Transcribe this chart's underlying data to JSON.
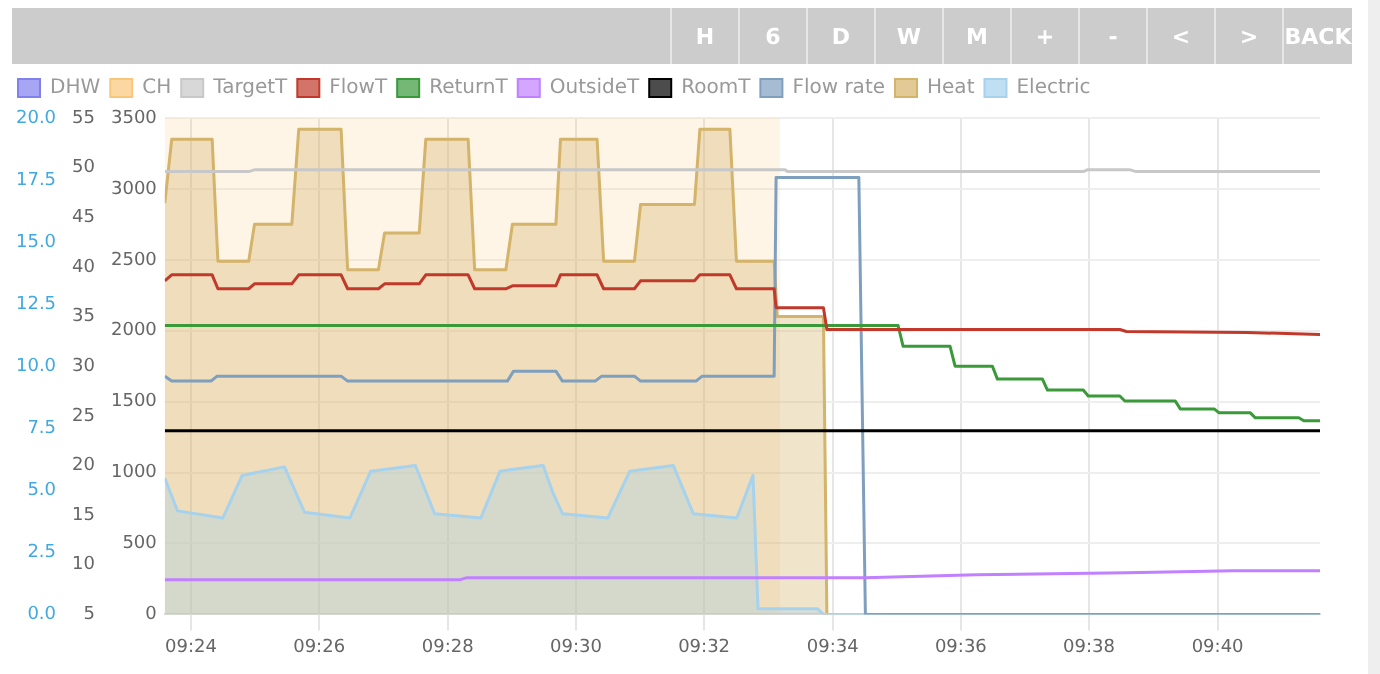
{
  "chart_data": {
    "type": "line",
    "annotations": [
      "H",
      "6",
      "D",
      "W",
      "M",
      "+",
      "-",
      "<",
      ">",
      "BACK"
    ],
    "xlim": [
      9.3932,
      9.6933
    ],
    "xticks": [
      {
        "value": 9.4,
        "label": "09:24"
      },
      {
        "value": 9.4333,
        "label": "09:26"
      },
      {
        "value": 9.4667,
        "label": "09:28"
      },
      {
        "value": 9.5,
        "label": "09:30"
      },
      {
        "value": 9.5333,
        "label": "09:32"
      },
      {
        "value": 9.5667,
        "label": "09:34"
      },
      {
        "value": 9.6,
        "label": "09:36"
      },
      {
        "value": 9.6333,
        "label": "09:38"
      },
      {
        "value": 9.6667,
        "label": "09:40"
      }
    ],
    "ylim": [
      0,
      3500
    ],
    "yticks": [
      0,
      500,
      1000,
      1500,
      2000,
      2500,
      3000,
      3500
    ],
    "y2lim": [
      5,
      55
    ],
    "y2ticks": [
      5,
      10,
      15,
      20,
      25,
      30,
      35,
      40,
      45,
      50,
      55
    ],
    "y3lim": [
      0,
      20
    ],
    "y3ticks": [
      {
        "value": 0,
        "label": "0.0"
      },
      {
        "value": 2.5,
        "label": "2.5"
      },
      {
        "value": 5,
        "label": "5.0"
      },
      {
        "value": 7.5,
        "label": "7.5"
      },
      {
        "value": 10,
        "label": "10.0"
      },
      {
        "value": 12.5,
        "label": "12.5"
      },
      {
        "value": 15,
        "label": "15.0"
      },
      {
        "value": 17.5,
        "label": "17.5"
      },
      {
        "value": 20,
        "label": "20.0"
      }
    ],
    "grid": true,
    "legend": "top left",
    "marker": "none",
    "line_style": "solid",
    "series": [
      {
        "name": "DHW",
        "color": "#8080f0",
        "type": "line"
      },
      {
        "name": "CH",
        "color": "#f9c77a",
        "type": "area",
        "x": [
          9.3932,
          9.553
        ],
        "values": [
          3500,
          3500
        ]
      },
      {
        "name": "TargetT",
        "color": "#c8c8c8",
        "type": "line",
        "axis": "y2",
        "x": [
          9.3932,
          9.415,
          9.4167,
          9.5542,
          9.555,
          9.6318,
          9.633,
          9.6438,
          9.6455,
          9.6933
        ],
        "values": [
          49.6,
          49.6,
          49.8,
          49.8,
          49.6,
          49.6,
          49.8,
          49.8,
          49.6,
          49.6
        ]
      },
      {
        "name": "FlowT",
        "color": "#c0392b",
        "type": "line",
        "axis": "y2",
        "x": [
          9.3932,
          9.395,
          9.4055,
          9.407,
          9.415,
          9.4165,
          9.4262,
          9.428,
          9.439,
          9.4407,
          9.4487,
          9.4503,
          9.4593,
          9.461,
          9.472,
          9.4737,
          9.4818,
          9.4835,
          9.4948,
          9.496,
          9.5055,
          9.5072,
          9.5152,
          9.5168,
          9.5308,
          9.5322,
          9.54,
          9.5417,
          9.5515,
          9.552,
          9.5643,
          9.5652,
          9.6413,
          9.643,
          9.6743,
          9.6933
        ],
        "values": [
          38.6,
          39.2,
          39.2,
          37.8,
          37.8,
          38.3,
          38.3,
          39.2,
          39.2,
          37.8,
          37.8,
          38.3,
          38.3,
          39.2,
          39.2,
          37.8,
          37.8,
          38.1,
          38.1,
          39.2,
          39.2,
          37.8,
          37.8,
          38.6,
          38.6,
          39.2,
          39.2,
          37.8,
          37.8,
          35.9,
          35.9,
          33.7,
          33.7,
          33.5,
          33.4,
          33.2
        ]
      },
      {
        "name": "ReturnT",
        "color": "#3a9a3a",
        "type": "line",
        "axis": "y2",
        "x": [
          9.3932,
          9.5837,
          9.585,
          9.5972,
          9.5985,
          9.6082,
          9.6095,
          9.6212,
          9.6225,
          9.6318,
          9.6331,
          9.6413,
          9.6426,
          9.6557,
          9.657,
          9.6658,
          9.6671,
          9.6752,
          9.6765,
          9.6878,
          9.6891,
          9.6933
        ],
        "values": [
          34.1,
          34.1,
          32,
          32,
          30,
          30,
          28.7,
          28.7,
          27.6,
          27.6,
          27,
          27,
          26.5,
          26.5,
          25.7,
          25.7,
          25.3,
          25.3,
          24.8,
          24.8,
          24.5,
          24.5
        ]
      },
      {
        "name": "OutsideT",
        "color": "#c080ff",
        "type": "line",
        "axis": "y2",
        "x": [
          9.3932,
          9.47,
          9.4717,
          9.5752,
          9.604,
          9.643,
          9.6708,
          9.6933
        ],
        "values": [
          8.5,
          8.5,
          8.7,
          8.7,
          9,
          9.2,
          9.4,
          9.4
        ]
      },
      {
        "name": "RoomT",
        "color": "#000000",
        "type": "line",
        "axis": "y2",
        "x": [
          9.3932,
          9.6933
        ],
        "values": [
          23.5,
          23.5
        ]
      },
      {
        "name": "Flow rate",
        "color": "#7f9fbf",
        "type": "line",
        "axis": "y3",
        "x": [
          9.3932,
          9.395,
          9.4052,
          9.4068,
          9.439,
          9.4407,
          9.4822,
          9.4838,
          9.4948,
          9.4965,
          9.505,
          9.5067,
          9.5152,
          9.5168,
          9.5312,
          9.5328,
          9.5515,
          9.552,
          9.5735,
          9.5752,
          9.6933
        ],
        "values": [
          9.6,
          9.4,
          9.4,
          9.6,
          9.6,
          9.4,
          9.4,
          9.8,
          9.8,
          9.4,
          9.4,
          9.6,
          9.6,
          9.4,
          9.4,
          9.6,
          9.6,
          17.6,
          17.6,
          0,
          0
        ]
      },
      {
        "name": "Heat",
        "color": "#d4b36a",
        "type": "area",
        "x": [
          9.3932,
          9.395,
          9.4055,
          9.407,
          9.415,
          9.4165,
          9.4262,
          9.428,
          9.439,
          9.4407,
          9.4487,
          9.4503,
          9.4593,
          9.461,
          9.472,
          9.4737,
          9.4818,
          9.4835,
          9.4948,
          9.496,
          9.5055,
          9.5072,
          9.5152,
          9.5168,
          9.5308,
          9.5322,
          9.54,
          9.5417,
          9.5515,
          9.5523,
          9.5643,
          9.5652
        ],
        "values": [
          2900,
          3350,
          3350,
          2490,
          2490,
          2750,
          2750,
          3420,
          3420,
          2430,
          2430,
          2690,
          2690,
          3350,
          3350,
          2430,
          2430,
          2750,
          2750,
          3350,
          3350,
          2490,
          2490,
          2890,
          2890,
          3420,
          3420,
          2490,
          2490,
          2100,
          2100,
          0
        ]
      },
      {
        "name": "Electric",
        "color": "#a6d2ee",
        "type": "area",
        "x": [
          9.3932,
          9.3965,
          9.4083,
          9.4133,
          9.4243,
          9.4295,
          9.4413,
          9.4467,
          9.4583,
          9.4633,
          9.4753,
          9.4803,
          9.4915,
          9.494,
          9.4965,
          9.5083,
          9.514,
          9.5253,
          9.5305,
          9.5418,
          9.546,
          9.5473,
          9.5627,
          9.5643,
          9.6933
        ],
        "values": [
          960,
          730,
          680,
          980,
          1040,
          720,
          680,
          1010,
          1050,
          710,
          680,
          1010,
          1050,
          860,
          710,
          680,
          1010,
          1050,
          710,
          680,
          980,
          40,
          40,
          0,
          0
        ]
      }
    ]
  }
}
